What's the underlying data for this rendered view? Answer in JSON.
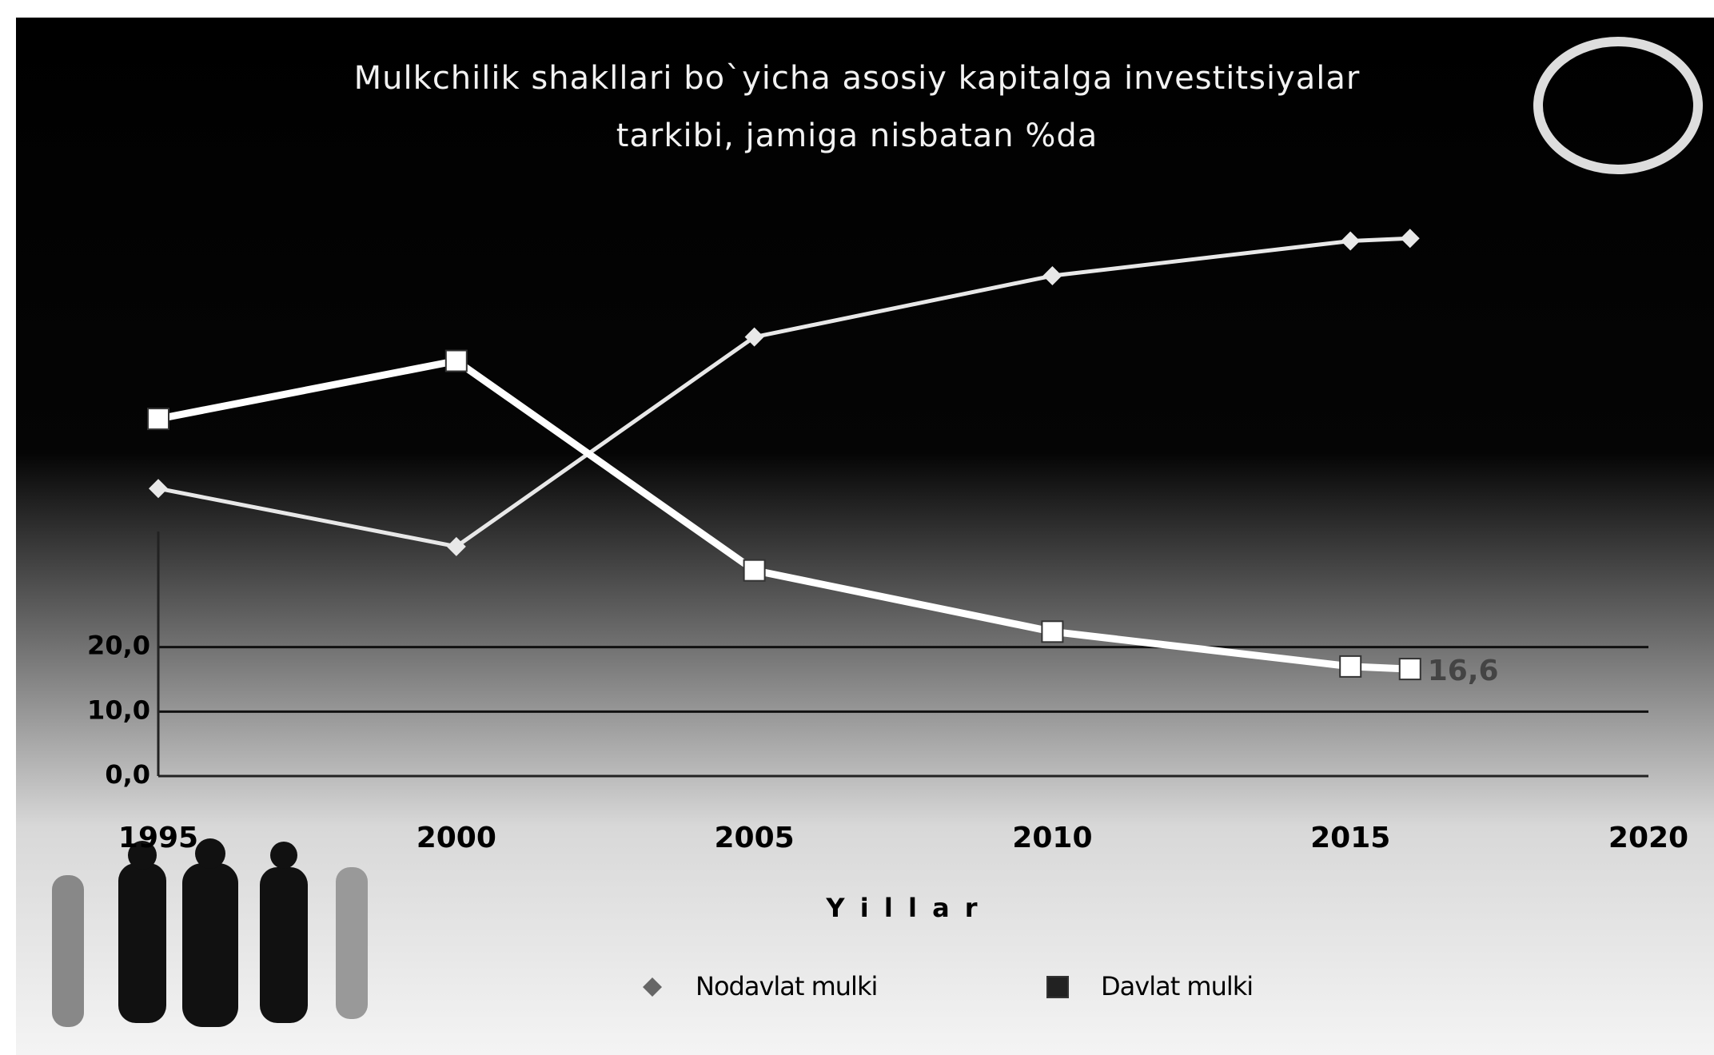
{
  "chart_data": {
    "type": "line",
    "title": "Mulkchilik shakllari bo`yicha asosiy kapitalga investitsiyalar tarkibi, jamiga nisbatan %da",
    "x": [
      1995,
      2000,
      2005,
      2010,
      2015,
      2016
    ],
    "series": [
      {
        "name": "Nodavlat mulki",
        "color": "#e8e8e8",
        "marker": "diamond",
        "values": [
          44.6,
          35.6,
          68.1,
          77.6,
          83.0,
          83.4
        ]
      },
      {
        "name": "Davlat mulki",
        "color": "#ffffff",
        "marker": "square",
        "values": [
          55.4,
          64.4,
          31.9,
          22.4,
          17.0,
          16.6
        ],
        "value_labels": [
          null,
          null,
          null,
          null,
          null,
          "16,6"
        ]
      }
    ],
    "xlabel": "Y i l l a r",
    "xlim": [
      1995,
      2020
    ],
    "xticks": [
      1995,
      2000,
      2005,
      2010,
      2015,
      2020
    ],
    "ylim": [
      0,
      90
    ],
    "yticks": [
      {
        "value": 0,
        "label": "0,0"
      },
      {
        "value": 10,
        "label": "10,0"
      },
      {
        "value": 20,
        "label": "20,0"
      }
    ],
    "grid": true,
    "legend": "bottom"
  }
}
